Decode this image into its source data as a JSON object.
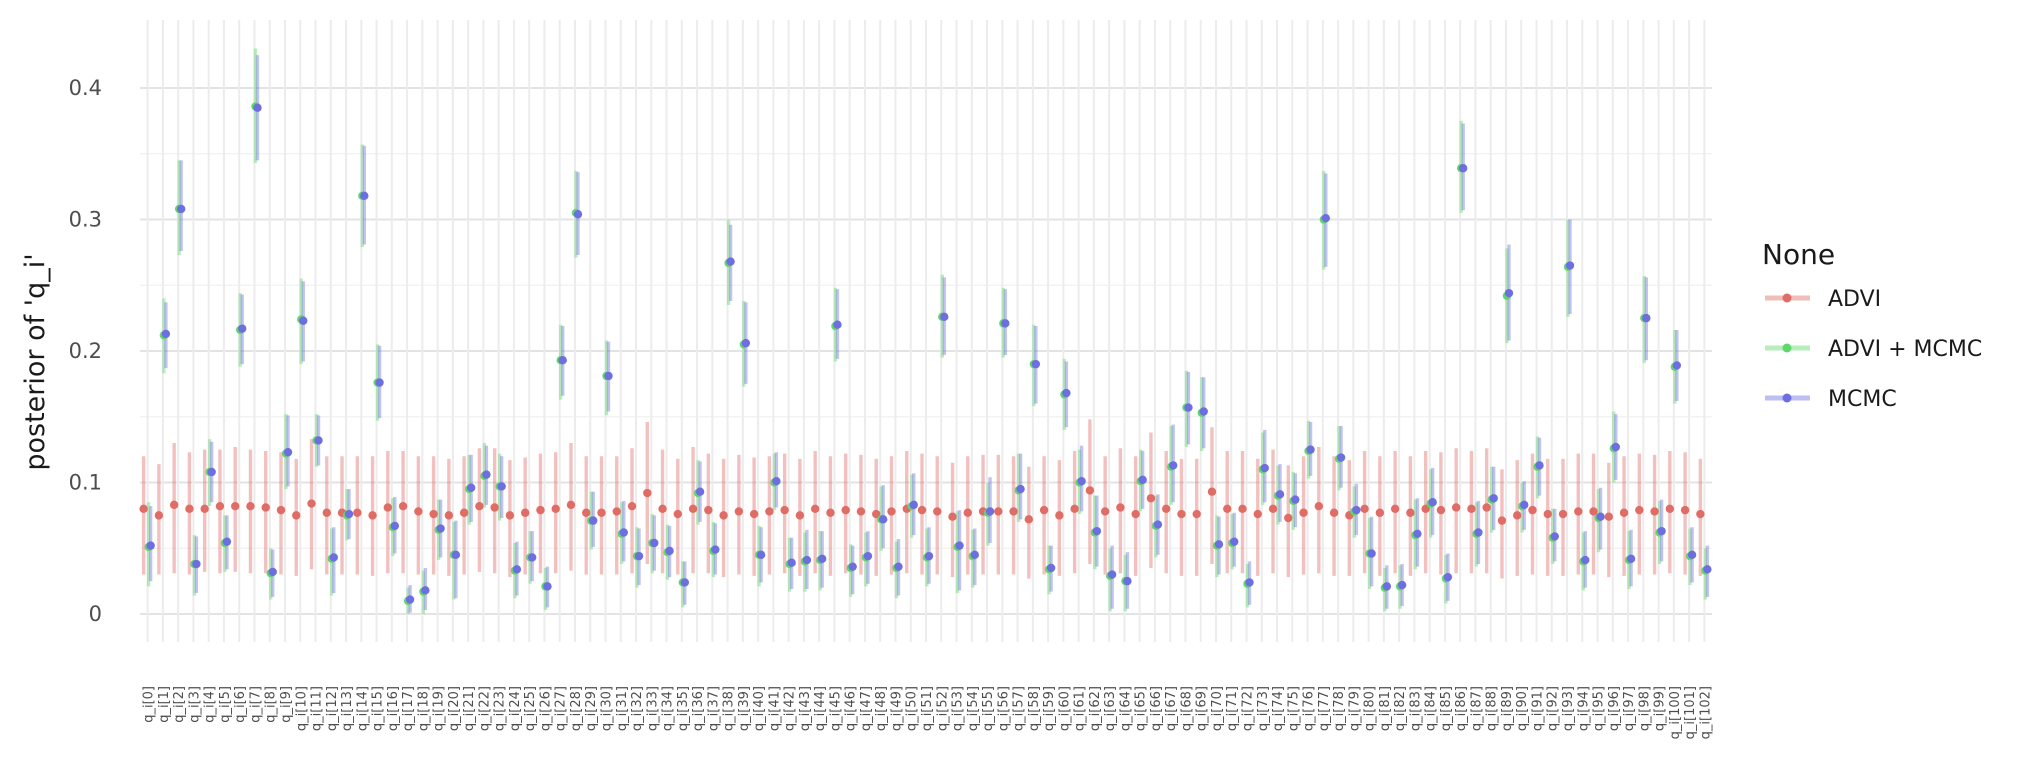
{
  "chart_data": {
    "type": "pointrange",
    "ylabel": "posterior of 'q_i'",
    "ylim": [
      -0.02,
      0.45
    ],
    "yticks": [
      0,
      0.1,
      0.2,
      0.3,
      0.4
    ],
    "ytick_labels": [
      "0",
      "0.1",
      "0.2",
      "0.3",
      "0.4"
    ],
    "categories": [
      "q_i[0]",
      "q_i[1]",
      "q_i[2]",
      "q_i[3]",
      "q_i[4]",
      "q_i[5]",
      "q_i[6]",
      "q_i[7]",
      "q_i[8]",
      "q_i[9]",
      "q_i[10]",
      "q_i[11]",
      "q_i[12]",
      "q_i[13]",
      "q_i[14]",
      "q_i[15]",
      "q_i[16]",
      "q_i[17]",
      "q_i[18]",
      "q_i[19]",
      "q_i[20]",
      "q_i[21]",
      "q_i[22]",
      "q_i[23]",
      "q_i[24]",
      "q_i[25]",
      "q_i[26]",
      "q_i[27]",
      "q_i[28]",
      "q_i[29]",
      "q_i[30]",
      "q_i[31]",
      "q_i[32]",
      "q_i[33]",
      "q_i[34]",
      "q_i[35]",
      "q_i[36]",
      "q_i[37]",
      "q_i[38]",
      "q_i[39]",
      "q_i[40]",
      "q_i[41]",
      "q_i[42]",
      "q_i[43]",
      "q_i[44]",
      "q_i[45]",
      "q_i[46]",
      "q_i[47]",
      "q_i[48]",
      "q_i[49]",
      "q_i[50]",
      "q_i[51]",
      "q_i[52]",
      "q_i[53]",
      "q_i[54]",
      "q_i[55]",
      "q_i[56]",
      "q_i[57]",
      "q_i[58]",
      "q_i[59]",
      "q_i[60]",
      "q_i[61]",
      "q_i[62]",
      "q_i[63]",
      "q_i[64]",
      "q_i[65]",
      "q_i[66]",
      "q_i[67]",
      "q_i[68]",
      "q_i[69]",
      "q_i[70]",
      "q_i[71]",
      "q_i[72]",
      "q_i[73]",
      "q_i[74]",
      "q_i[75]",
      "q_i[76]",
      "q_i[77]",
      "q_i[78]",
      "q_i[79]",
      "q_i[80]",
      "q_i[81]",
      "q_i[82]",
      "q_i[83]",
      "q_i[84]",
      "q_i[85]",
      "q_i[86]",
      "q_i[87]",
      "q_i[88]",
      "q_i[89]",
      "q_i[90]",
      "q_i[91]",
      "q_i[92]",
      "q_i[93]",
      "q_i[94]",
      "q_i[95]",
      "q_i[96]",
      "q_i[97]",
      "q_i[98]",
      "q_i[99]",
      "q_i[100]",
      "q_i[101]",
      "q_i[102]"
    ],
    "grid": true,
    "legend": {
      "title": "None",
      "placement": "right",
      "entries": [
        "ADVI",
        "ADVI + MCMC",
        "MCMC"
      ]
    },
    "series": [
      {
        "name": "ADVI",
        "color": "#e06c66",
        "values": [
          0.08,
          0.075,
          0.083,
          0.08,
          0.08,
          0.082,
          0.082,
          0.082,
          0.081,
          0.079,
          0.075,
          0.084,
          0.077,
          0.077,
          0.077,
          0.075,
          0.081,
          0.082,
          0.078,
          0.076,
          0.075,
          0.077,
          0.082,
          0.081,
          0.075,
          0.077,
          0.079,
          0.08,
          0.083,
          0.077,
          0.077,
          0.078,
          0.082,
          0.092,
          0.08,
          0.076,
          0.08,
          0.079,
          0.075,
          0.078,
          0.076,
          0.078,
          0.079,
          0.075,
          0.08,
          0.077,
          0.079,
          0.078,
          0.076,
          0.078,
          0.08,
          0.079,
          0.078,
          0.074,
          0.077,
          0.078,
          0.078,
          0.078,
          0.072,
          0.079,
          0.075,
          0.08,
          0.094,
          0.078,
          0.081,
          0.076,
          0.088,
          0.08,
          0.076,
          0.076,
          0.093,
          0.08,
          0.08,
          0.076,
          0.08,
          0.073,
          0.077,
          0.082,
          0.077,
          0.075,
          0.08,
          0.077,
          0.08,
          0.077,
          0.08,
          0.079,
          0.081,
          0.08,
          0.081,
          0.071,
          0.075,
          0.079,
          0.076,
          0.076,
          0.078,
          0.078,
          0.074,
          0.077,
          0.079,
          0.078,
          0.08,
          0.079,
          0.076
        ],
        "lower": [
          0.03,
          0.03,
          0.031,
          0.03,
          0.032,
          0.031,
          0.032,
          0.031,
          0.031,
          0.03,
          0.029,
          0.034,
          0.03,
          0.03,
          0.03,
          0.029,
          0.031,
          0.031,
          0.03,
          0.03,
          0.029,
          0.03,
          0.032,
          0.031,
          0.028,
          0.03,
          0.031,
          0.031,
          0.033,
          0.03,
          0.03,
          0.03,
          0.031,
          0.038,
          0.031,
          0.03,
          0.031,
          0.031,
          0.028,
          0.03,
          0.029,
          0.03,
          0.031,
          0.029,
          0.031,
          0.029,
          0.031,
          0.03,
          0.029,
          0.03,
          0.031,
          0.03,
          0.03,
          0.028,
          0.03,
          0.03,
          0.03,
          0.03,
          0.027,
          0.03,
          0.029,
          0.031,
          0.038,
          0.03,
          0.031,
          0.029,
          0.035,
          0.031,
          0.029,
          0.029,
          0.038,
          0.031,
          0.031,
          0.029,
          0.031,
          0.028,
          0.03,
          0.031,
          0.029,
          0.029,
          0.031,
          0.029,
          0.031,
          0.029,
          0.031,
          0.03,
          0.031,
          0.031,
          0.031,
          0.027,
          0.029,
          0.03,
          0.029,
          0.029,
          0.03,
          0.03,
          0.028,
          0.029,
          0.03,
          0.03,
          0.031,
          0.03,
          0.029
        ],
        "upper": [
          0.12,
          0.114,
          0.13,
          0.123,
          0.125,
          0.125,
          0.127,
          0.125,
          0.124,
          0.123,
          0.118,
          0.133,
          0.12,
          0.12,
          0.12,
          0.12,
          0.124,
          0.124,
          0.12,
          0.12,
          0.118,
          0.12,
          0.126,
          0.126,
          0.117,
          0.119,
          0.122,
          0.123,
          0.13,
          0.12,
          0.12,
          0.12,
          0.126,
          0.146,
          0.125,
          0.118,
          0.127,
          0.122,
          0.118,
          0.121,
          0.119,
          0.12,
          0.122,
          0.118,
          0.124,
          0.12,
          0.122,
          0.121,
          0.118,
          0.12,
          0.124,
          0.122,
          0.12,
          0.115,
          0.12,
          0.121,
          0.121,
          0.12,
          0.112,
          0.12,
          0.117,
          0.124,
          0.148,
          0.12,
          0.126,
          0.12,
          0.138,
          0.124,
          0.118,
          0.118,
          0.142,
          0.124,
          0.124,
          0.118,
          0.125,
          0.113,
          0.12,
          0.127,
          0.12,
          0.117,
          0.124,
          0.12,
          0.124,
          0.12,
          0.124,
          0.123,
          0.126,
          0.124,
          0.126,
          0.11,
          0.117,
          0.122,
          0.118,
          0.118,
          0.122,
          0.122,
          0.115,
          0.12,
          0.122,
          0.121,
          0.124,
          0.123,
          0.118
        ]
      },
      {
        "name": "ADVI + MCMC",
        "color": "#61d66a",
        "values": [
          0.051,
          0.212,
          0.308,
          0.038,
          0.108,
          0.054,
          0.216,
          0.386,
          0.031,
          0.122,
          0.224,
          0.132,
          0.042,
          0.075,
          0.318,
          0.176,
          0.066,
          0.01,
          0.017,
          0.064,
          0.045,
          0.095,
          0.105,
          0.097,
          0.033,
          0.043,
          0.021,
          0.193,
          0.305,
          0.071,
          0.181,
          0.061,
          0.044,
          0.054,
          0.047,
          0.024,
          0.092,
          0.048,
          0.267,
          0.205,
          0.045,
          0.1,
          0.038,
          0.04,
          0.041,
          0.219,
          0.035,
          0.043,
          0.072,
          0.035,
          0.082,
          0.043,
          0.226,
          0.051,
          0.044,
          0.077,
          0.221,
          0.094,
          0.19,
          0.034,
          0.167,
          0.1,
          0.062,
          0.029,
          0.025,
          0.101,
          0.067,
          0.112,
          0.157,
          0.153,
          0.052,
          0.054,
          0.023,
          0.11,
          0.09,
          0.086,
          0.124,
          0.3,
          0.118,
          0.078,
          0.046,
          0.02,
          0.021,
          0.06,
          0.084,
          0.027,
          0.339,
          0.061,
          0.087,
          0.242,
          0.082,
          0.112,
          0.058,
          0.264,
          0.04,
          0.073,
          0.126,
          0.041,
          0.225,
          0.062,
          0.188,
          0.044,
          0.033
        ],
        "lower": [
          0.021,
          0.183,
          0.273,
          0.014,
          0.082,
          0.032,
          0.188,
          0.343,
          0.011,
          0.095,
          0.19,
          0.112,
          0.014,
          0.056,
          0.279,
          0.147,
          0.044,
          0.0,
          0.0,
          0.041,
          0.011,
          0.068,
          0.081,
          0.071,
          0.012,
          0.023,
          0.003,
          0.163,
          0.271,
          0.049,
          0.151,
          0.038,
          0.02,
          0.031,
          0.026,
          0.005,
          0.068,
          0.028,
          0.235,
          0.173,
          0.021,
          0.079,
          0.017,
          0.017,
          0.018,
          0.192,
          0.013,
          0.021,
          0.048,
          0.012,
          0.058,
          0.021,
          0.195,
          0.016,
          0.02,
          0.052,
          0.195,
          0.07,
          0.158,
          0.015,
          0.14,
          0.076,
          0.034,
          0.002,
          0.002,
          0.078,
          0.043,
          0.083,
          0.127,
          0.124,
          0.028,
          0.034,
          0.005,
          0.083,
          0.068,
          0.064,
          0.103,
          0.262,
          0.094,
          0.058,
          0.019,
          0.002,
          0.004,
          0.034,
          0.058,
          0.008,
          0.305,
          0.036,
          0.062,
          0.206,
          0.062,
          0.088,
          0.038,
          0.226,
          0.018,
          0.047,
          0.1,
          0.019,
          0.191,
          0.038,
          0.16,
          0.022,
          0.011
        ],
        "upper": [
          0.085,
          0.24,
          0.345,
          0.06,
          0.133,
          0.075,
          0.244,
          0.43,
          0.05,
          0.152,
          0.255,
          0.152,
          0.065,
          0.095,
          0.357,
          0.205,
          0.088,
          0.02,
          0.033,
          0.087,
          0.07,
          0.121,
          0.13,
          0.122,
          0.054,
          0.063,
          0.035,
          0.22,
          0.337,
          0.093,
          0.208,
          0.085,
          0.066,
          0.076,
          0.068,
          0.04,
          0.117,
          0.07,
          0.3,
          0.238,
          0.067,
          0.122,
          0.058,
          0.062,
          0.063,
          0.248,
          0.053,
          0.062,
          0.097,
          0.055,
          0.106,
          0.065,
          0.258,
          0.078,
          0.064,
          0.1,
          0.248,
          0.122,
          0.22,
          0.052,
          0.194,
          0.125,
          0.09,
          0.05,
          0.045,
          0.125,
          0.09,
          0.143,
          0.185,
          0.18,
          0.075,
          0.076,
          0.038,
          0.138,
          0.113,
          0.108,
          0.147,
          0.337,
          0.143,
          0.097,
          0.073,
          0.035,
          0.037,
          0.087,
          0.11,
          0.045,
          0.375,
          0.085,
          0.112,
          0.278,
          0.1,
          0.135,
          0.08,
          0.3,
          0.062,
          0.095,
          0.154,
          0.063,
          0.257,
          0.086,
          0.216,
          0.065,
          0.05
        ]
      },
      {
        "name": "MCMC",
        "color": "#6d6fe0",
        "values": [
          0.052,
          0.213,
          0.308,
          0.038,
          0.108,
          0.055,
          0.217,
          0.385,
          0.032,
          0.123,
          0.223,
          0.132,
          0.043,
          0.076,
          0.318,
          0.176,
          0.067,
          0.011,
          0.018,
          0.065,
          0.045,
          0.096,
          0.106,
          0.097,
          0.034,
          0.043,
          0.021,
          0.193,
          0.304,
          0.071,
          0.181,
          0.062,
          0.044,
          0.054,
          0.048,
          0.024,
          0.093,
          0.049,
          0.268,
          0.206,
          0.045,
          0.101,
          0.039,
          0.041,
          0.042,
          0.22,
          0.036,
          0.044,
          0.072,
          0.036,
          0.083,
          0.044,
          0.226,
          0.052,
          0.045,
          0.078,
          0.221,
          0.095,
          0.19,
          0.035,
          0.168,
          0.101,
          0.063,
          0.03,
          0.025,
          0.102,
          0.068,
          0.113,
          0.157,
          0.154,
          0.053,
          0.055,
          0.024,
          0.111,
          0.091,
          0.087,
          0.125,
          0.301,
          0.119,
          0.079,
          0.046,
          0.021,
          0.022,
          0.061,
          0.085,
          0.028,
          0.339,
          0.062,
          0.088,
          0.244,
          0.083,
          0.113,
          0.059,
          0.265,
          0.041,
          0.074,
          0.127,
          0.042,
          0.225,
          0.063,
          0.189,
          0.045,
          0.034
        ],
        "lower": [
          0.025,
          0.187,
          0.276,
          0.016,
          0.085,
          0.034,
          0.19,
          0.345,
          0.013,
          0.097,
          0.192,
          0.113,
          0.016,
          0.057,
          0.281,
          0.149,
          0.046,
          0.001,
          0.003,
          0.043,
          0.012,
          0.07,
          0.083,
          0.073,
          0.014,
          0.025,
          0.005,
          0.166,
          0.273,
          0.051,
          0.154,
          0.04,
          0.022,
          0.033,
          0.028,
          0.007,
          0.07,
          0.03,
          0.238,
          0.175,
          0.024,
          0.081,
          0.019,
          0.019,
          0.02,
          0.194,
          0.015,
          0.023,
          0.05,
          0.014,
          0.06,
          0.023,
          0.197,
          0.018,
          0.022,
          0.054,
          0.197,
          0.072,
          0.16,
          0.017,
          0.142,
          0.078,
          0.036,
          0.004,
          0.004,
          0.08,
          0.045,
          0.085,
          0.129,
          0.126,
          0.03,
          0.036,
          0.007,
          0.085,
          0.07,
          0.066,
          0.105,
          0.264,
          0.096,
          0.06,
          0.021,
          0.004,
          0.006,
          0.036,
          0.06,
          0.01,
          0.307,
          0.038,
          0.064,
          0.208,
          0.064,
          0.09,
          0.04,
          0.228,
          0.02,
          0.049,
          0.102,
          0.021,
          0.193,
          0.04,
          0.162,
          0.024,
          0.013
        ],
        "upper": [
          0.082,
          0.237,
          0.345,
          0.059,
          0.131,
          0.075,
          0.243,
          0.425,
          0.049,
          0.151,
          0.253,
          0.151,
          0.066,
          0.095,
          0.356,
          0.204,
          0.089,
          0.022,
          0.035,
          0.087,
          0.071,
          0.121,
          0.128,
          0.12,
          0.055,
          0.063,
          0.036,
          0.219,
          0.336,
          0.093,
          0.207,
          0.086,
          0.065,
          0.075,
          0.067,
          0.04,
          0.116,
          0.069,
          0.296,
          0.237,
          0.066,
          0.123,
          0.058,
          0.064,
          0.063,
          0.247,
          0.052,
          0.063,
          0.098,
          0.057,
          0.107,
          0.066,
          0.256,
          0.079,
          0.065,
          0.104,
          0.247,
          0.122,
          0.219,
          0.052,
          0.192,
          0.128,
          0.09,
          0.052,
          0.047,
          0.124,
          0.091,
          0.144,
          0.184,
          0.18,
          0.074,
          0.077,
          0.04,
          0.14,
          0.114,
          0.107,
          0.146,
          0.335,
          0.143,
          0.099,
          0.074,
          0.037,
          0.038,
          0.088,
          0.111,
          0.046,
          0.373,
          0.086,
          0.112,
          0.281,
          0.101,
          0.134,
          0.08,
          0.3,
          0.063,
          0.096,
          0.152,
          0.064,
          0.256,
          0.087,
          0.216,
          0.066,
          0.052
        ]
      }
    ]
  }
}
